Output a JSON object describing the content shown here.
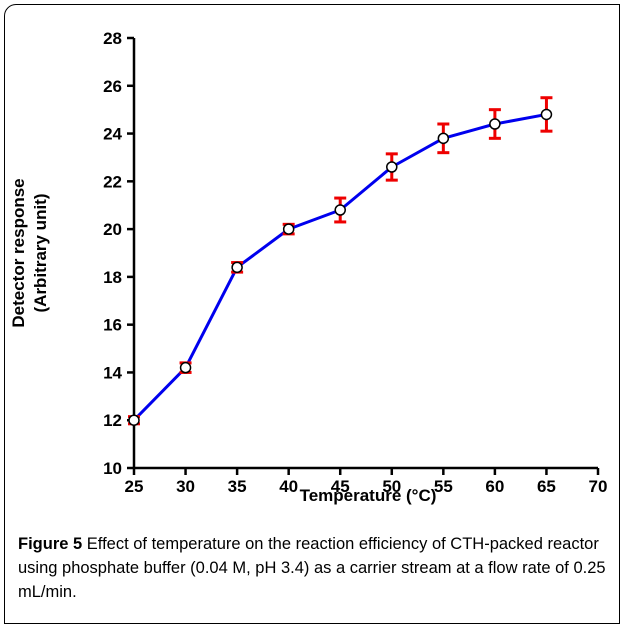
{
  "chart_data": {
    "type": "line",
    "x": [
      25,
      30,
      35,
      40,
      45,
      50,
      55,
      60,
      65
    ],
    "series": [
      {
        "values": [
          12.0,
          14.2,
          18.4,
          20.0,
          20.8,
          22.6,
          23.8,
          24.4,
          24.8
        ],
        "errors": [
          0.15,
          0.2,
          0.2,
          0.2,
          0.5,
          0.55,
          0.6,
          0.6,
          0.7
        ]
      }
    ],
    "xlabel": "Temperature (°C)",
    "ylabel_line1": "Detector response",
    "ylabel_line2": "(Arbitrary unit)",
    "xlim": [
      25,
      70
    ],
    "ylim": [
      10,
      28
    ],
    "xticks": [
      "25",
      "30",
      "35",
      "40",
      "45",
      "50",
      "55",
      "60",
      "65",
      "70"
    ],
    "yticks": [
      "10",
      "12",
      "14",
      "16",
      "18",
      "20",
      "22",
      "24",
      "26",
      "28"
    ],
    "grid": false,
    "colors": {
      "line": "#0000ee",
      "error_bar": "#ee0000",
      "marker_fill": "#ffffff",
      "marker_edge": "#000000"
    }
  },
  "caption": {
    "lead": "Figure 5",
    "text": " Effect of temperature on the reaction efficiency of CTH-packed reactor using phosphate buffer (0.04 M, pH 3.4) as a carrier stream at a flow rate of 0.25 mL/min."
  }
}
